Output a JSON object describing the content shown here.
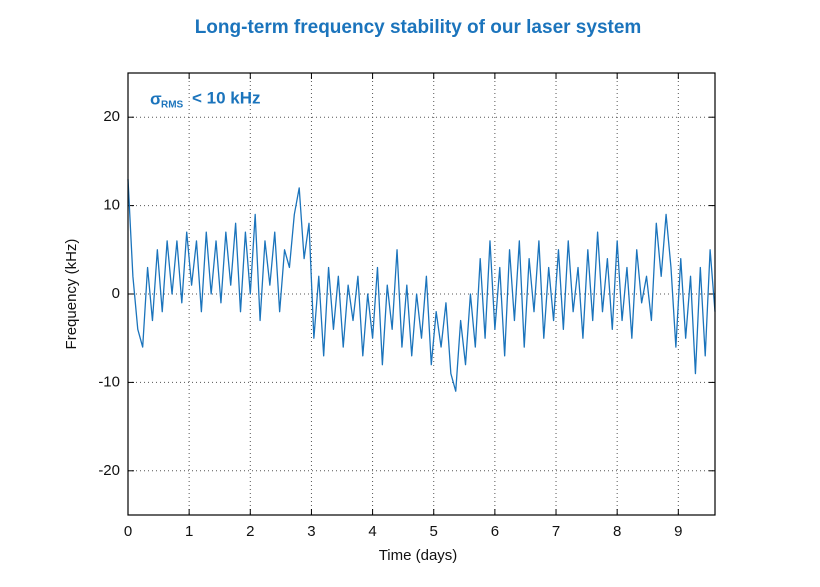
{
  "chart_data": {
    "type": "line",
    "title": "Long-term frequency stability of our laser system",
    "annotation": {
      "symbol": "σ",
      "subscript": "RMS",
      "text": "< 10 kHz"
    },
    "xlabel": "Time (days)",
    "ylabel": "Frequency (kHz)",
    "xlim": [
      0,
      9.6
    ],
    "ylim": [
      -25,
      25
    ],
    "xticks": [
      0,
      1,
      2,
      3,
      4,
      5,
      6,
      7,
      8,
      9
    ],
    "yticks": [
      -20,
      -10,
      0,
      10,
      20
    ],
    "grid": true,
    "x": [
      0,
      0.08,
      0.16,
      0.24,
      0.32,
      0.4,
      0.48,
      0.56,
      0.64,
      0.72,
      0.8,
      0.88,
      0.96,
      1.04,
      1.12,
      1.2,
      1.28,
      1.36,
      1.44,
      1.52,
      1.6,
      1.68,
      1.76,
      1.84,
      1.92,
      2.0,
      2.08,
      2.16,
      2.24,
      2.32,
      2.4,
      2.48,
      2.56,
      2.64,
      2.72,
      2.8,
      2.88,
      2.96,
      3.04,
      3.12,
      3.2,
      3.28,
      3.36,
      3.44,
      3.52,
      3.6,
      3.68,
      3.76,
      3.84,
      3.92,
      4.0,
      4.08,
      4.16,
      4.24,
      4.32,
      4.4,
      4.48,
      4.56,
      4.64,
      4.72,
      4.8,
      4.88,
      4.96,
      5.04,
      5.12,
      5.2,
      5.28,
      5.36,
      5.44,
      5.52,
      5.6,
      5.68,
      5.76,
      5.84,
      5.92,
      6.0,
      6.08,
      6.16,
      6.24,
      6.32,
      6.4,
      6.48,
      6.56,
      6.64,
      6.72,
      6.8,
      6.88,
      6.96,
      7.04,
      7.12,
      7.2,
      7.28,
      7.36,
      7.44,
      7.52,
      7.6,
      7.68,
      7.76,
      7.84,
      7.92,
      8.0,
      8.08,
      8.16,
      8.24,
      8.32,
      8.4,
      8.48,
      8.56,
      8.64,
      8.72,
      8.8,
      8.88,
      8.96,
      9.04,
      9.12,
      9.2,
      9.28,
      9.36,
      9.44,
      9.52,
      9.6
    ],
    "series": [
      {
        "color": "#1b74bc",
        "values": [
          13,
          2,
          -4,
          -6,
          3,
          -3,
          5,
          -2,
          6,
          0,
          6,
          -1,
          7,
          1,
          6,
          -2,
          7,
          0,
          6,
          -1,
          7,
          1,
          8,
          -2,
          7,
          0,
          9,
          -3,
          6,
          1,
          7,
          -2,
          5,
          3,
          9,
          12,
          4,
          8,
          -5,
          2,
          -7,
          3,
          -4,
          2,
          -6,
          1,
          -3,
          2,
          -7,
          0,
          -5,
          3,
          -8,
          1,
          -4,
          5,
          -6,
          1,
          -7,
          0,
          -5,
          2,
          -8,
          -2,
          -6,
          -1,
          -9,
          -11,
          -3,
          -8,
          0,
          -6,
          4,
          -5,
          6,
          -4,
          3,
          -7,
          5,
          -3,
          6,
          -6,
          4,
          -2,
          6,
          -5,
          3,
          -3,
          5,
          -4,
          6,
          -2,
          3,
          -5,
          5,
          -3,
          7,
          -2,
          4,
          -4,
          6,
          -3,
          3,
          -5,
          5,
          -1,
          2,
          -3,
          8,
          2,
          9,
          3,
          -6,
          4,
          -5,
          2,
          -9,
          3,
          -7,
          5,
          -2
        ]
      }
    ]
  }
}
